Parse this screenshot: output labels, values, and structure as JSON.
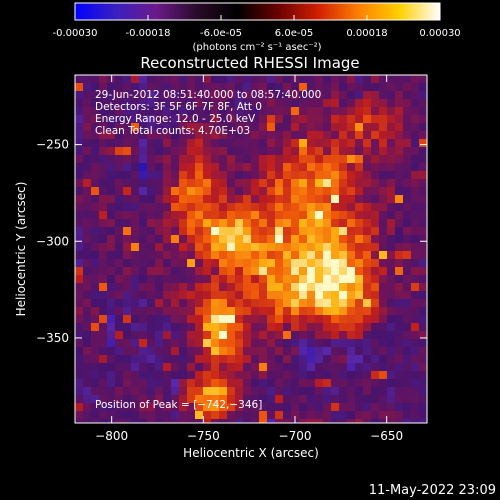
{
  "colorbar": {
    "ticks": [
      "-0.00030",
      "-0.00018",
      "-6.0e-05",
      "6.0e-05",
      "0.00018",
      "0.00030"
    ],
    "unit_label": "(photons cm⁻² s⁻¹ asec⁻²)",
    "range": [
      -0.0003,
      0.0003
    ],
    "colors": [
      "#0000ff",
      "#3a20c0",
      "#6a1a8a",
      "#2a0a2a",
      "#000000",
      "#6a0000",
      "#d02000",
      "#ff8000",
      "#ffd000",
      "#ffffff"
    ]
  },
  "chart_data": {
    "type": "heatmap",
    "title": "Reconstructed RHESSI Image",
    "xlabel": "Heliocentric X (arcsec)",
    "ylabel": "Heliocentric Y (arcsec)",
    "x_ticks": [
      -800,
      -750,
      -700,
      -650
    ],
    "x_tick_labels": [
      "−800",
      "−750",
      "−700",
      "−650"
    ],
    "y_ticks": [
      -250,
      -300,
      -350
    ],
    "y_tick_labels": [
      "−250",
      "−300",
      "−350"
    ],
    "xlim": [
      -820,
      -628
    ],
    "ylim": [
      -394,
      -214
    ],
    "grid": false,
    "peak": [
      -742,
      -346
    ],
    "annotations": [
      "29-Jun-2012 08:51:40.000 to 08:57:40.000",
      "Detectors: 3F 5F 6F 7F 8F, Att 0",
      "Energy Range: 12.0 - 25.0 keV",
      "Clean    Total counts: 4.70E+03"
    ],
    "peak_label": "Position of Peak = [−742,−346]"
  },
  "footer": {
    "timestamp": "11-May-2022 23:09"
  }
}
